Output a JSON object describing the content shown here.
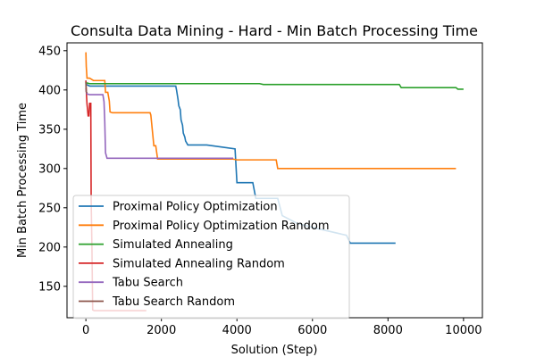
{
  "chart_data": {
    "type": "line",
    "title": "Consulta Data Mining - Hard - Min Batch Processing Time",
    "xlabel": "Solution (Step)",
    "ylabel": "Min Batch Processing Time",
    "xlim": [
      -500,
      10500
    ],
    "ylim": [
      110,
      460
    ],
    "xticks": [
      0,
      2000,
      4000,
      6000,
      8000,
      10000
    ],
    "yticks": [
      150,
      200,
      250,
      300,
      350,
      400,
      450
    ],
    "grid": false,
    "legend_position": "lower-left",
    "series": [
      {
        "name": "Proximal Policy Optimization",
        "color": "#1f77b4",
        "x": [
          0,
          10,
          100,
          2380,
          2400,
          2440,
          2460,
          2500,
          2520,
          2560,
          2580,
          2620,
          2640,
          2700,
          3200,
          3950,
          4000,
          4420,
          4500,
          5080,
          5200,
          5600,
          6000,
          6900,
          7000,
          8200
        ],
        "y": [
          412,
          407,
          405,
          405,
          400,
          388,
          380,
          375,
          362,
          355,
          345,
          340,
          335,
          330,
          330,
          325,
          282,
          282,
          262,
          262,
          240,
          230,
          225,
          215,
          205,
          205
        ]
      },
      {
        "name": "Proximal Policy Optimization Random",
        "color": "#ff7f0e",
        "x": [
          0,
          10,
          30,
          100,
          200,
          250,
          500,
          520,
          560,
          580,
          620,
          640,
          700,
          1700,
          1720,
          1800,
          1850,
          1900,
          3900,
          4000,
          5040,
          5080,
          9800
        ],
        "y": [
          448,
          430,
          415,
          415,
          412,
          412,
          412,
          397,
          397,
          397,
          386,
          372,
          371,
          371,
          368,
          329,
          329,
          312,
          312,
          311,
          311,
          300,
          300
        ]
      },
      {
        "name": "Simulated Annealing",
        "color": "#2ca02c",
        "x": [
          0,
          20,
          100,
          4600,
          4700,
          8300,
          8350,
          9800,
          9850,
          10000
        ],
        "y": [
          410,
          409,
          408,
          408,
          407,
          407,
          403,
          403,
          401,
          401
        ]
      },
      {
        "name": "Simulated Annealing Random",
        "color": "#d62728",
        "x": [
          0,
          10,
          20,
          30,
          60,
          80,
          100,
          130,
          140,
          160,
          180,
          220,
          1600
        ],
        "y": [
          412,
          400,
          390,
          382,
          367,
          367,
          383,
          383,
          260,
          200,
          120,
          119,
          119
        ]
      },
      {
        "name": "Tabu Search",
        "color": "#9467bd",
        "x": [
          0,
          10,
          30,
          100,
          450,
          480,
          500,
          520,
          560,
          1850,
          1900,
          3900
        ],
        "y": [
          402,
          398,
          395,
          394,
          394,
          385,
          360,
          320,
          313,
          313,
          313,
          313
        ]
      },
      {
        "name": "Tabu Search Random",
        "color": "#8c564b",
        "x": [
          0,
          5,
          10,
          30
        ],
        "y": [
          410,
          402,
          398,
          396
        ]
      }
    ]
  }
}
